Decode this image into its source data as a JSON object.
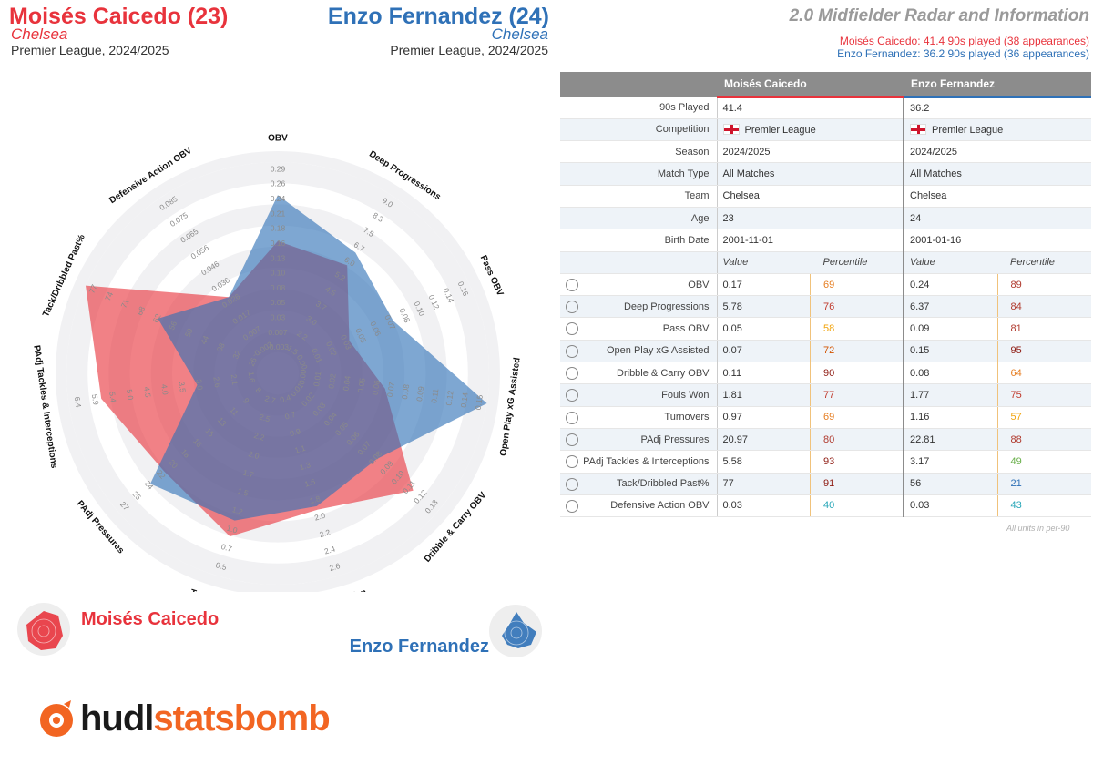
{
  "header": {
    "p1_name": "Moisés Caicedo (23)",
    "p1_club": "Chelsea",
    "p1_comp": "Premier League, 2024/2025",
    "p2_name": "Enzo Fernandez (24)",
    "p2_club": "Chelsea",
    "p2_comp": "Premier League, 2024/2025",
    "right_title": "2.0 Midfielder Radar and Information",
    "right_sub1": "Moisés Caicedo: 41.4 90s played (38 appearances)",
    "right_sub2": "Enzo Fernandez: 36.2 90s played (36 appearances)"
  },
  "colors": {
    "p1": "#e8333c",
    "p2": "#2f71b7",
    "logo_orange": "#f26522"
  },
  "legend": {
    "p1": "Moisés Caicedo",
    "p2": "Enzo Fernandez"
  },
  "logo": {
    "part1": "hudl",
    "part2": "statsbomb"
  },
  "chart_data": {
    "type": "radar",
    "axes": [
      {
        "label": "OBV",
        "ticks": [
          "-0.003",
          "0.007",
          "0.03",
          "0.05",
          "0.08",
          "0.10",
          "0.13",
          "0.16",
          "0.18",
          "0.21",
          "0.24",
          "0.26",
          "0.29"
        ]
      },
      {
        "label": "Deep Progressions",
        "ticks": [
          "1.5",
          "2.2",
          "3.0",
          "3.7",
          "4.5",
          "5.2",
          "6.0",
          "6.7",
          "7.5",
          "8.3",
          "9.0"
        ]
      },
      {
        "label": "Pass OBV",
        "ticks": [
          "0.00",
          "0.01",
          "0.02",
          "0.03",
          "0.05",
          "0.06",
          "0.07",
          "0.08",
          "0.10",
          "0.12",
          "0.14",
          "0.16"
        ]
      },
      {
        "label": "Open Play xG Assisted",
        "ticks": [
          "0.00",
          "0.01",
          "0.02",
          "0.04",
          "0.05",
          "0.06",
          "0.07",
          "0.08",
          "0.09",
          "0.11",
          "0.12",
          "0.14",
          "0.15"
        ]
      },
      {
        "label": "Dribble & Carry OBV",
        "ticks": [
          "0.01",
          "0.02",
          "0.03",
          "0.04",
          "0.05",
          "0.06",
          "0.07",
          "0.08",
          "0.09",
          "0.10",
          "0.11",
          "0.12",
          "0.13"
        ]
      },
      {
        "label": "Fouls Won",
        "ticks": [
          "0.4",
          "0.7",
          "0.9",
          "1.1",
          "1.3",
          "1.6",
          "1.8",
          "2.0",
          "2.2",
          "2.4",
          "2.6"
        ]
      },
      {
        "label": "Turnovers",
        "ticks": [
          "2.7",
          "2.5",
          "2.2",
          "2.0",
          "1.7",
          "1.5",
          "1.2",
          "1.0",
          "0.7",
          "0.5"
        ]
      },
      {
        "label": "PAdj Pressures",
        "ticks": [
          "8",
          "9",
          "11",
          "13",
          "15",
          "16",
          "18",
          "20",
          "22",
          "24",
          "25",
          "27"
        ]
      },
      {
        "label": "PAdj Tackles & Interceptions",
        "ticks": [
          "1.6",
          "2.1",
          "2.6",
          "3.0",
          "3.5",
          "4.0",
          "4.5",
          "5.0",
          "5.4",
          "5.9",
          "6.4"
        ]
      },
      {
        "label": "Tack/Dribbled Past%",
        "ticks": [
          "26",
          "32",
          "38",
          "44",
          "50",
          "56",
          "62",
          "68",
          "71",
          "74",
          "77"
        ]
      },
      {
        "label": "Defensive Action OBV",
        "ticks": [
          "-0.003",
          "0.007",
          "0.017",
          "0.026",
          "0.036",
          "0.046",
          "0.056",
          "0.065",
          "0.075",
          "0.085"
        ]
      }
    ],
    "series": [
      {
        "name": "Moisés Caicedo",
        "values": [
          0.17,
          5.78,
          0.05,
          0.07,
          0.11,
          1.81,
          0.97,
          20.97,
          5.58,
          77,
          0.03
        ]
      },
      {
        "name": "Enzo Fernandez",
        "values": [
          0.24,
          6.37,
          0.09,
          0.15,
          0.08,
          1.77,
          1.16,
          22.81,
          3.17,
          56,
          0.03
        ]
      }
    ]
  },
  "table": {
    "col1": "Moisés Caicedo",
    "col2": "Enzo Fernandez",
    "info_rows": [
      {
        "label": "90s Played",
        "v1": "41.4",
        "v2": "36.2"
      },
      {
        "label": "Competition",
        "v1": "Premier League",
        "v2": "Premier League",
        "flag": true
      },
      {
        "label": "Season",
        "v1": "2024/2025",
        "v2": "2024/2025"
      },
      {
        "label": "Match Type",
        "v1": "All Matches",
        "v2": "All Matches"
      },
      {
        "label": "Team",
        "v1": "Chelsea",
        "v2": "Chelsea"
      },
      {
        "label": "Age",
        "v1": "23",
        "v2": "24"
      },
      {
        "label": "Birth Date",
        "v1": "2001-11-01",
        "v2": "2001-01-16"
      }
    ],
    "sub_value": "Value",
    "sub_percentile": "Percentile",
    "metric_rows": [
      {
        "label": "OBV",
        "v1": "0.17",
        "p1": "69",
        "v2": "0.24",
        "p2": "89",
        "c1": "#e67e22",
        "c2": "#b03a2e"
      },
      {
        "label": "Deep Progressions",
        "v1": "5.78",
        "p1": "76",
        "v2": "6.37",
        "p2": "84",
        "c1": "#c0392b",
        "c2": "#b03a2e"
      },
      {
        "label": "Pass OBV",
        "v1": "0.05",
        "p1": "58",
        "v2": "0.09",
        "p2": "81",
        "c1": "#f1a30b",
        "c2": "#b03a2e"
      },
      {
        "label": "Open Play xG Assisted",
        "v1": "0.07",
        "p1": "72",
        "v2": "0.15",
        "p2": "95",
        "c1": "#d35400",
        "c2": "#8e1b12"
      },
      {
        "label": "Dribble & Carry OBV",
        "v1": "0.11",
        "p1": "90",
        "v2": "0.08",
        "p2": "64",
        "c1": "#8e1b12",
        "c2": "#e67e22"
      },
      {
        "label": "Fouls Won",
        "v1": "1.81",
        "p1": "77",
        "v2": "1.77",
        "p2": "75",
        "c1": "#c0392b",
        "c2": "#c0392b"
      },
      {
        "label": "Turnovers",
        "v1": "0.97",
        "p1": "69",
        "v2": "1.16",
        "p2": "57",
        "c1": "#e67e22",
        "c2": "#f1a30b"
      },
      {
        "label": "PAdj Pressures",
        "v1": "20.97",
        "p1": "80",
        "v2": "22.81",
        "p2": "88",
        "c1": "#b03a2e",
        "c2": "#b03a2e"
      },
      {
        "label": "PAdj Tackles & Interceptions",
        "v1": "5.58",
        "p1": "93",
        "v2": "3.17",
        "p2": "49",
        "c1": "#8e1b12",
        "c2": "#6ab04c"
      },
      {
        "label": "Tack/Dribbled Past%",
        "v1": "77",
        "p1": "91",
        "v2": "56",
        "p2": "21",
        "c1": "#8e1b12",
        "c2": "#2f71b7"
      },
      {
        "label": "Defensive Action OBV",
        "v1": "0.03",
        "p1": "40",
        "v2": "0.03",
        "p2": "43",
        "c1": "#2aa7b8",
        "c2": "#2aa7b8"
      }
    ],
    "units_note": "All units in per-90"
  }
}
